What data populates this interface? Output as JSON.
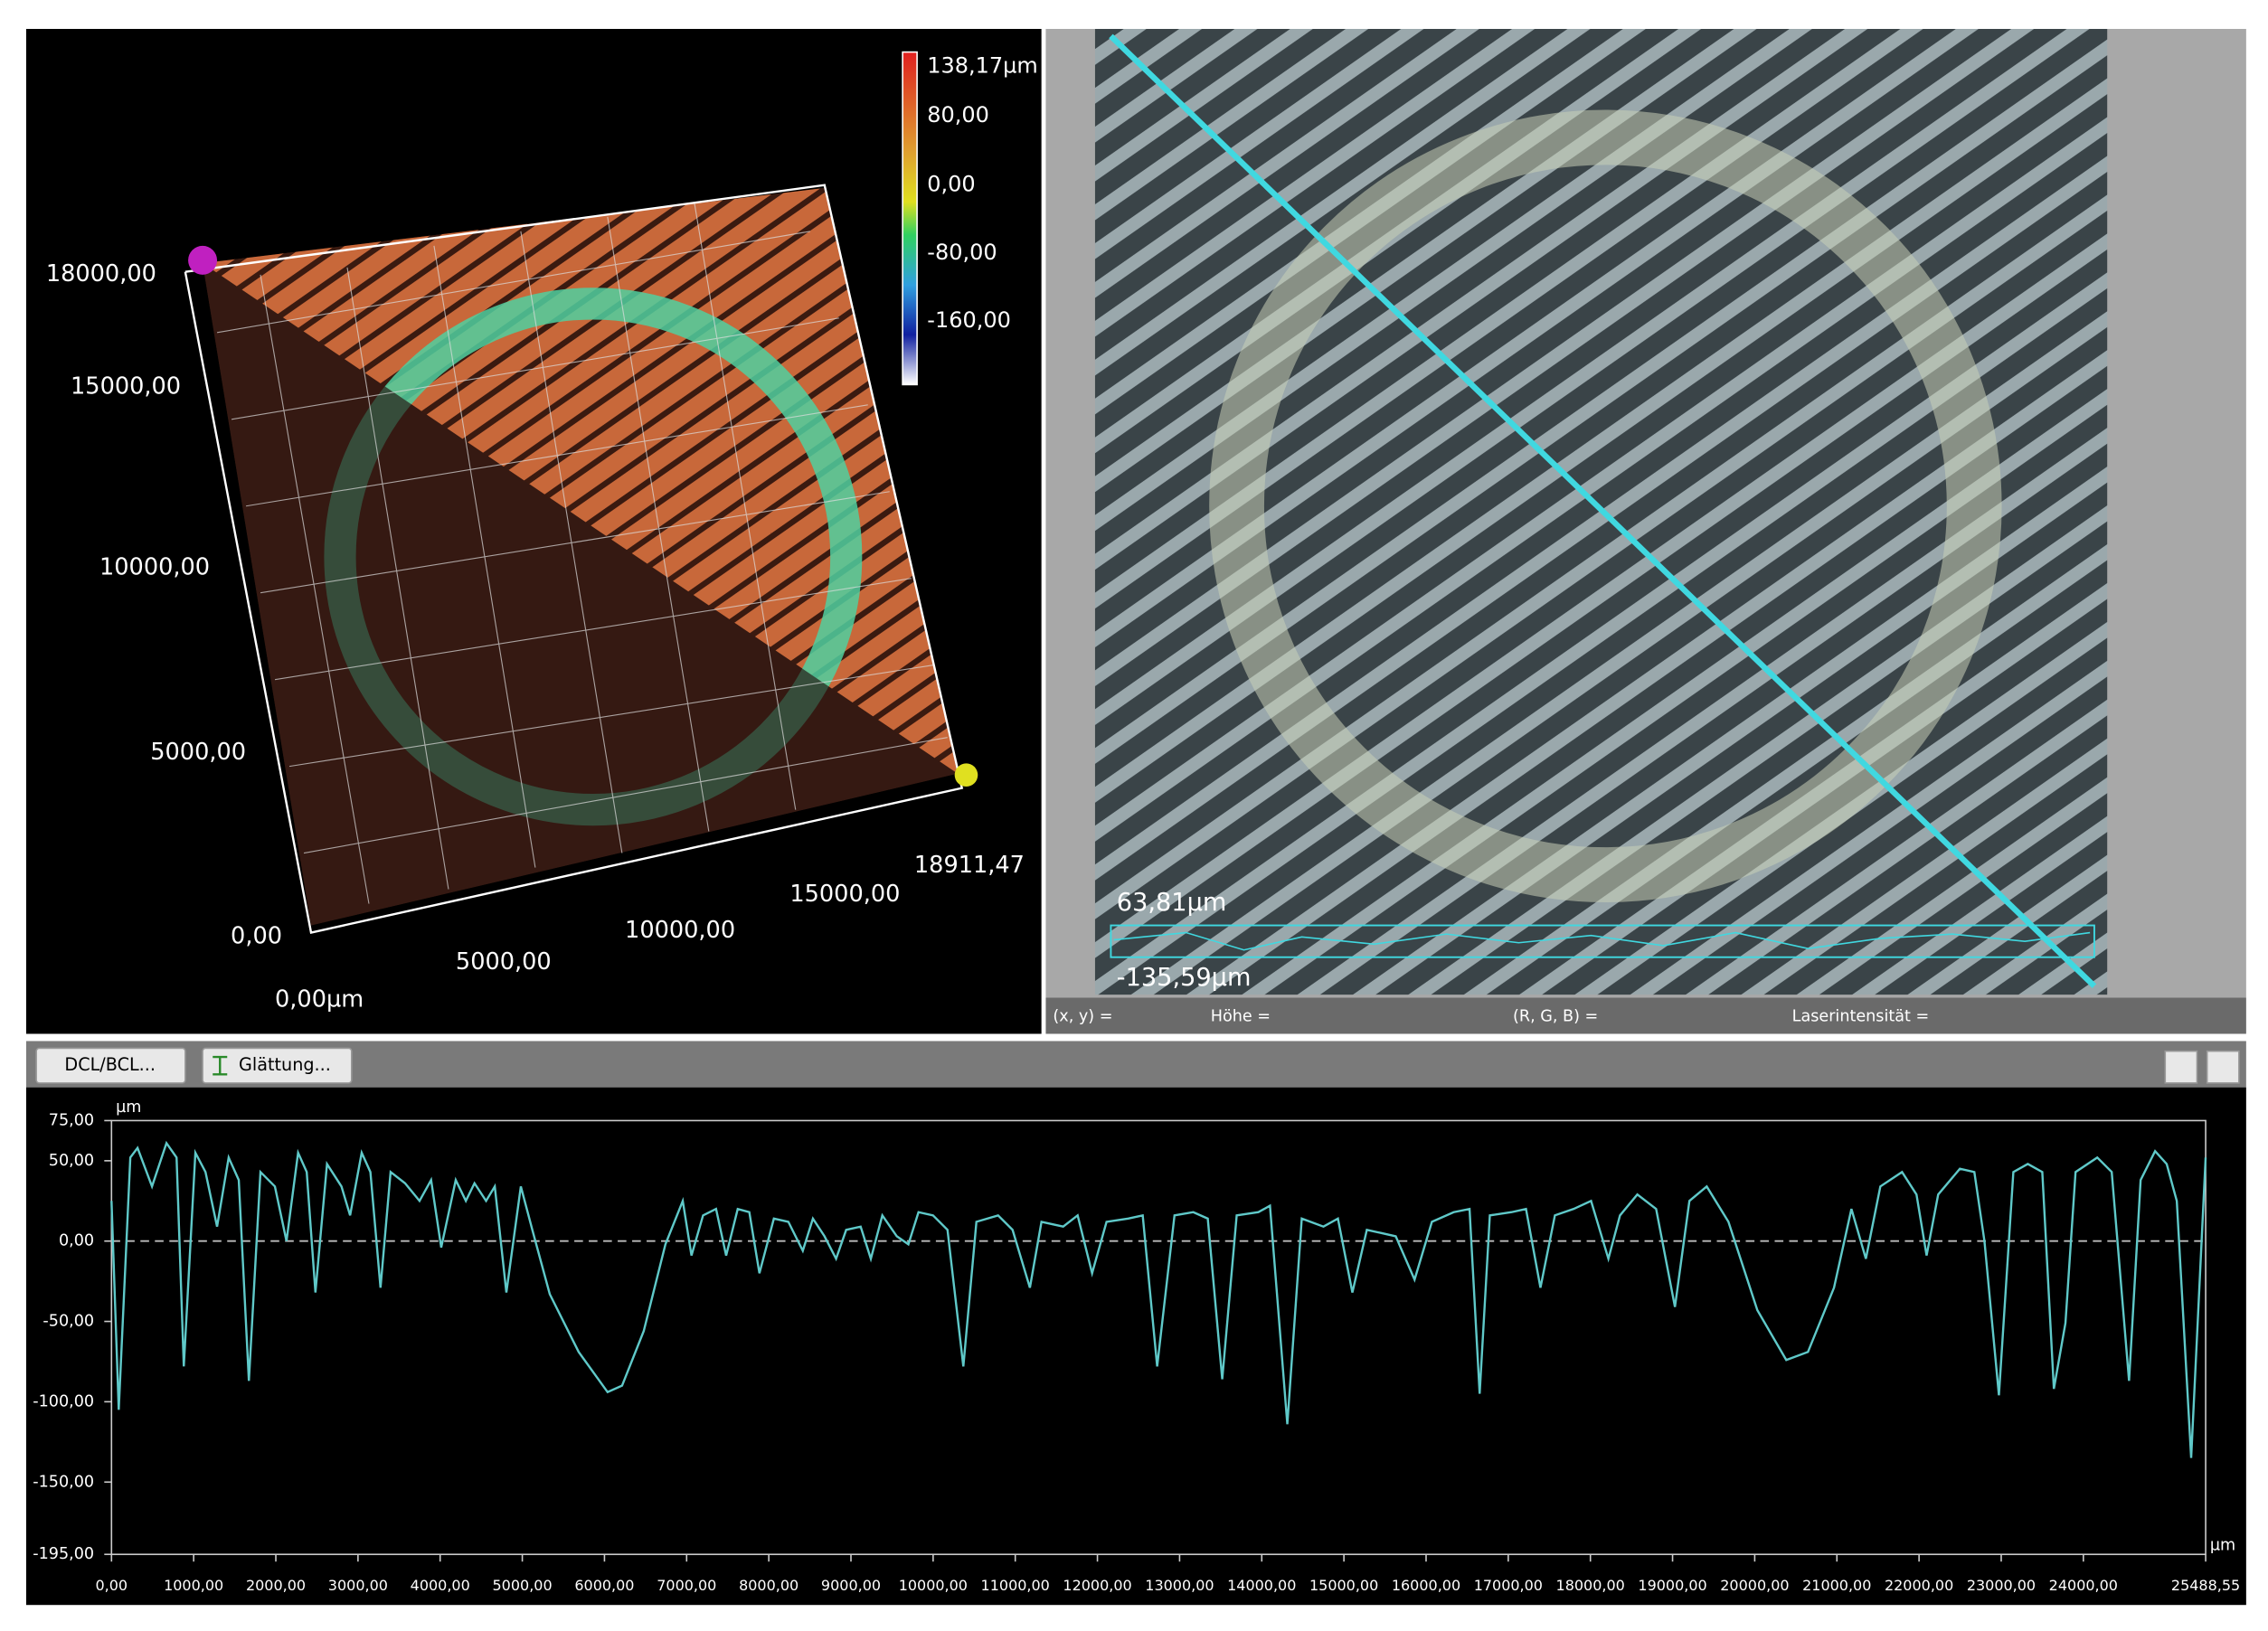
{
  "view_3d": {
    "y_axis_labels": [
      "18000,00",
      "15000,00",
      "10000,00",
      "5000,00",
      "0,00"
    ],
    "x_axis_labels": [
      "0,00µm",
      "5000,00",
      "10000,00",
      "15000,00",
      "18911,47"
    ],
    "colorbar_labels": [
      "138,17µm",
      "80,00",
      "0,00",
      "-80,00",
      "-160,00"
    ]
  },
  "image_view": {
    "profile_max": "63,81µm",
    "profile_min": "-135,59µm"
  },
  "status_bar": [
    "(x, y)  =",
    "Höhe  =",
    "(R, G, B)  =",
    "Laserintensität  ="
  ],
  "toolbar": {
    "buttons": [
      "DCL/BCL...",
      "Glättung..."
    ]
  },
  "chart_data": {
    "type": "line",
    "ylabel": "µm",
    "xlabel": "µm",
    "color": "#5fc9c9",
    "reference_line": 0,
    "xlim": [
      0,
      25488.55
    ],
    "ylim": [
      -195,
      75
    ],
    "yticks": [
      {
        "value": 75,
        "label": "75,00"
      },
      {
        "value": 50,
        "label": "50,00"
      },
      {
        "value": 0,
        "label": "0,00"
      },
      {
        "value": -50,
        "label": "-50,00"
      },
      {
        "value": -100,
        "label": "-100,00"
      },
      {
        "value": -150,
        "label": "-150,00"
      },
      {
        "value": -195,
        "label": "-195,00"
      }
    ],
    "xticks": [
      {
        "value": 0,
        "label": "0,00"
      },
      {
        "value": 1000,
        "label": "1000,00"
      },
      {
        "value": 2000,
        "label": "2000,00"
      },
      {
        "value": 3000,
        "label": "3000,00"
      },
      {
        "value": 4000,
        "label": "4000,00"
      },
      {
        "value": 5000,
        "label": "5000,00"
      },
      {
        "value": 6000,
        "label": "6000,00"
      },
      {
        "value": 7000,
        "label": "7000,00"
      },
      {
        "value": 8000,
        "label": "8000,00"
      },
      {
        "value": 9000,
        "label": "9000,00"
      },
      {
        "value": 10000,
        "label": "10000,00"
      },
      {
        "value": 11000,
        "label": "11000,00"
      },
      {
        "value": 12000,
        "label": "12000,00"
      },
      {
        "value": 13000,
        "label": "13000,00"
      },
      {
        "value": 14000,
        "label": "14000,00"
      },
      {
        "value": 15000,
        "label": "15000,00"
      },
      {
        "value": 16000,
        "label": "16000,00"
      },
      {
        "value": 17000,
        "label": "17000,00"
      },
      {
        "value": 18000,
        "label": "18000,00"
      },
      {
        "value": 19000,
        "label": "19000,00"
      },
      {
        "value": 20000,
        "label": "20000,00"
      },
      {
        "value": 21000,
        "label": "21000,00"
      },
      {
        "value": 22000,
        "label": "22000,00"
      },
      {
        "value": 23000,
        "label": "23000,00"
      },
      {
        "value": 24000,
        "label": "24000,00"
      },
      {
        "value": 25488.55,
        "label": "25488,55"
      }
    ],
    "x": [
      0,
      88,
      229,
      317,
      493,
      669,
      792,
      880,
      1021,
      1144,
      1285,
      1426,
      1549,
      1672,
      1813,
      1989,
      2130,
      2271,
      2376,
      2482,
      2623,
      2799,
      2904,
      3045,
      3151,
      3274,
      3397,
      3573,
      3749,
      3890,
      4013,
      4190,
      4313,
      4418,
      4559,
      4665,
      4806,
      4982,
      5122,
      5334,
      5686,
      6038,
      6214,
      6478,
      6742,
      6953,
      7059,
      7200,
      7358,
      7481,
      7622,
      7763,
      7886,
      8062,
      8238,
      8414,
      8537,
      8678,
      8819,
      8942,
      9118,
      9242,
      9382,
      9558,
      9699,
      9822,
      9999,
      10175,
      10368,
      10527,
      10791,
      10967,
      11178,
      11319,
      11583,
      11759,
      11935,
      12111,
      12375,
      12551,
      12727,
      12938,
      13167,
      13343,
      13519,
      13695,
      13959,
      14100,
      14311,
      14487,
      14751,
      14927,
      15103,
      15279,
      15455,
      15631,
      15860,
      16071,
      16336,
      16529,
      16652,
      16776,
      17040,
      17216,
      17392,
      17568,
      17796,
      18008,
      18219,
      18360,
      18571,
      18800,
      19029,
      19205,
      19416,
      19680,
      20032,
      20384,
      20648,
      20965,
      21177,
      21353,
      21529,
      21793,
      21969,
      22092,
      22233,
      22497,
      22673,
      22796,
      22972,
      23148,
      23324,
      23500,
      23641,
      23782,
      23905,
      24169,
      24345,
      24556,
      24697,
      24873,
      25014,
      25137,
      25312,
      25488
    ],
    "values": [
      25,
      -105,
      52,
      58,
      34,
      61,
      52,
      -78,
      55,
      43,
      9,
      52,
      38,
      -87,
      43,
      34,
      0,
      55,
      43,
      -32,
      48,
      34,
      16,
      55,
      43,
      -29,
      43,
      36,
      25,
      38,
      -4,
      38,
      25,
      36,
      25,
      34,
      -32,
      34,
      7,
      -33,
      -69,
      -94,
      -90,
      -56,
      -2,
      25,
      -9,
      16,
      20,
      -9,
      20,
      18,
      -20,
      14,
      12,
      -6,
      14,
      3,
      -11,
      7,
      9,
      -11,
      16,
      3,
      -2,
      18,
      16,
      7,
      -78,
      12,
      16,
      7,
      -29,
      12,
      9,
      16,
      -20,
      12,
      14,
      16,
      -78,
      16,
      18,
      14,
      -86,
      16,
      18,
      22,
      -114,
      14,
      9,
      14,
      -32,
      7,
      5,
      3,
      -24,
      12,
      18,
      20,
      -95,
      16,
      18,
      20,
      -29,
      16,
      20,
      25,
      -11,
      16,
      29,
      20,
      -41,
      25,
      34,
      12,
      -43,
      -74,
      -69,
      -29,
      20,
      -11,
      34,
      43,
      29,
      -9,
      29,
      45,
      43,
      0,
      -96,
      43,
      48,
      43,
      -92,
      -51,
      43,
      52,
      43,
      -87,
      38,
      56,
      48,
      25,
      -135,
      52
    ]
  }
}
